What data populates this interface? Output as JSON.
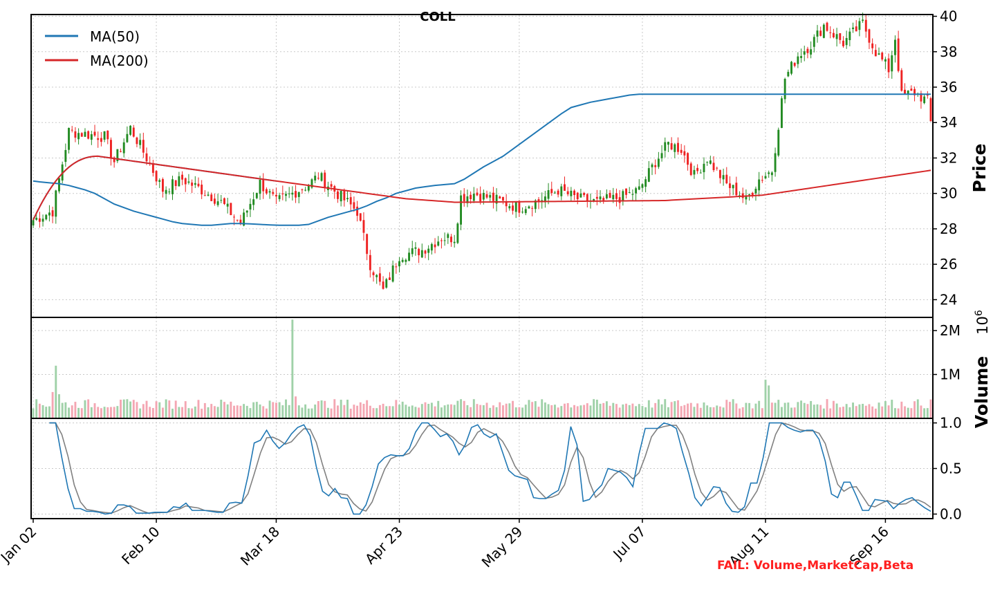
{
  "title": "COLL",
  "fail_label": "FAIL: Volume,MarketCap,Beta",
  "colors": {
    "ma50": "#1f77b4",
    "ma200": "#d62728",
    "up": "#228b22",
    "down": "#ee2222",
    "vol_up": "#9fd1a8",
    "vol_down": "#f4a6b2",
    "stoch_k": "#1f77b4",
    "stoch_d": "#808080",
    "fail": "#ff2020"
  },
  "chart_data": [
    {
      "id": "price",
      "type": "candlestick",
      "ylabel": "Price",
      "ylim": [
        23,
        40.1
      ],
      "yticks": [
        24,
        26,
        28,
        30,
        32,
        34,
        36,
        38,
        40
      ],
      "grid": true,
      "legend_placement": "top-left",
      "series": [
        {
          "name": "MA(50)",
          "x": [
            0,
            2,
            5,
            8,
            11,
            13,
            16,
            19,
            22,
            25,
            28,
            31,
            34,
            37,
            40,
            43,
            46,
            49,
            52,
            55,
            58,
            61,
            64,
            67,
            70,
            73,
            76,
            79,
            82,
            85,
            88,
            91,
            94,
            97,
            100,
            103,
            106,
            109,
            112,
            115,
            118,
            121,
            124,
            127,
            130,
            133,
            136,
            139,
            142,
            145,
            148,
            151,
            154,
            157,
            160,
            163,
            166,
            169,
            172,
            175,
            178,
            181,
            184,
            187,
            190,
            193,
            196,
            199,
            202,
            205,
            208,
            211,
            214,
            217,
            221,
            225,
            229,
            233,
            237,
            241,
            245,
            249,
            253,
            257,
            261,
            265,
            268,
            271,
            274,
            277
          ],
          "values": [
            30.7,
            30.65,
            30.6,
            30.55,
            30.45,
            30.35,
            30.2,
            30.0,
            29.7,
            29.4,
            29.2,
            29.0,
            28.85,
            28.7,
            28.55,
            28.4,
            28.3,
            28.25,
            28.2,
            28.2,
            28.25,
            28.3,
            28.3,
            28.28,
            28.25,
            28.22,
            28.2,
            28.2,
            28.2,
            28.25,
            28.45,
            28.65,
            28.8,
            28.95,
            29.1,
            29.3,
            29.55,
            29.75,
            30.0,
            30.15,
            30.3,
            30.38,
            30.45,
            30.5,
            30.55,
            30.8,
            31.15,
            31.5,
            31.8,
            32.1,
            32.5,
            32.9,
            33.3,
            33.7,
            34.1,
            34.5,
            34.85,
            35.0,
            35.15,
            35.25,
            35.35,
            35.45,
            35.55,
            35.6,
            35.6,
            35.6,
            35.6,
            35.6,
            35.6,
            35.6,
            35.6,
            35.6,
            35.6,
            35.6,
            35.6,
            35.6,
            35.6,
            35.6,
            35.6,
            35.6,
            35.6,
            35.6,
            35.6,
            35.6,
            35.6,
            35.6,
            35.6,
            35.6,
            35.6,
            35.6
          ]
        },
        {
          "name": "MA(200)",
          "values": []
        }
      ]
    },
    {
      "id": "volume",
      "type": "bar",
      "ylabel": "Volume",
      "exponent_label": "10",
      "exponent_power": "6",
      "ylim": [
        0,
        2.3
      ],
      "yticks": [
        1,
        2
      ],
      "ytick_labels": [
        "1M",
        "2M"
      ],
      "grid": true
    },
    {
      "id": "stochastic",
      "type": "line",
      "ylim": [
        -0.05,
        1.05
      ],
      "yticks": [
        0,
        0.5,
        1
      ],
      "ytick_labels": [
        "0.0",
        "0.5",
        "1.0"
      ],
      "grid": true,
      "x_tick_positions": [
        0,
        38,
        75,
        113,
        150,
        188,
        226,
        263
      ],
      "x_tick_labels": [
        "Jan 02",
        "Feb 10",
        "Mar 18",
        "Apr 23",
        "May 29",
        "Jul 07",
        "Aug 11",
        "Sep 16"
      ],
      "k_values": [
        1.0,
        1.0,
        0.62,
        0.28,
        0.06,
        0.06,
        0.03,
        0.03,
        0.02,
        0.0,
        0.01,
        0.1,
        0.1,
        0.08,
        0.01,
        0.01,
        0.01,
        0.02,
        0.02,
        0.02,
        0.08,
        0.07,
        0.12,
        0.04,
        0.04,
        0.04,
        0.03,
        0.02,
        0.02,
        0.12,
        0.13,
        0.12,
        0.42,
        0.78,
        0.81,
        0.92,
        0.8,
        0.72,
        0.78,
        0.88,
        0.95,
        0.98,
        0.86,
        0.52,
        0.25,
        0.2,
        0.28,
        0.18,
        0.17,
        0.0,
        0.0,
        0.1,
        0.3,
        0.55,
        0.62,
        0.65,
        0.64,
        0.64,
        0.72,
        0.9,
        1.0,
        1.0,
        0.93,
        0.85,
        0.88,
        0.8,
        0.65,
        0.76,
        0.95,
        0.98,
        0.88,
        0.84,
        0.88,
        0.68,
        0.48,
        0.42,
        0.4,
        0.38,
        0.18,
        0.17,
        0.17,
        0.22,
        0.26,
        0.48,
        0.96,
        0.76,
        0.14,
        0.16,
        0.25,
        0.32,
        0.5,
        0.48,
        0.46,
        0.4,
        0.3,
        0.66,
        0.94,
        0.94,
        0.94,
        1.0,
        0.98,
        0.94,
        0.68,
        0.45,
        0.18,
        0.09,
        0.19,
        0.3,
        0.29,
        0.12,
        0.03,
        0.02,
        0.08,
        0.34,
        0.34,
        0.62,
        1.0,
        1.0,
        1.0,
        0.95,
        0.92,
        0.9,
        0.92,
        0.92,
        0.82,
        0.58,
        0.22,
        0.18,
        0.35,
        0.35,
        0.2,
        0.04,
        0.04,
        0.16,
        0.15,
        0.14,
        0.06,
        0.12,
        0.16,
        0.18,
        0.12,
        0.07,
        0.03
      ],
      "d_values": []
    }
  ]
}
